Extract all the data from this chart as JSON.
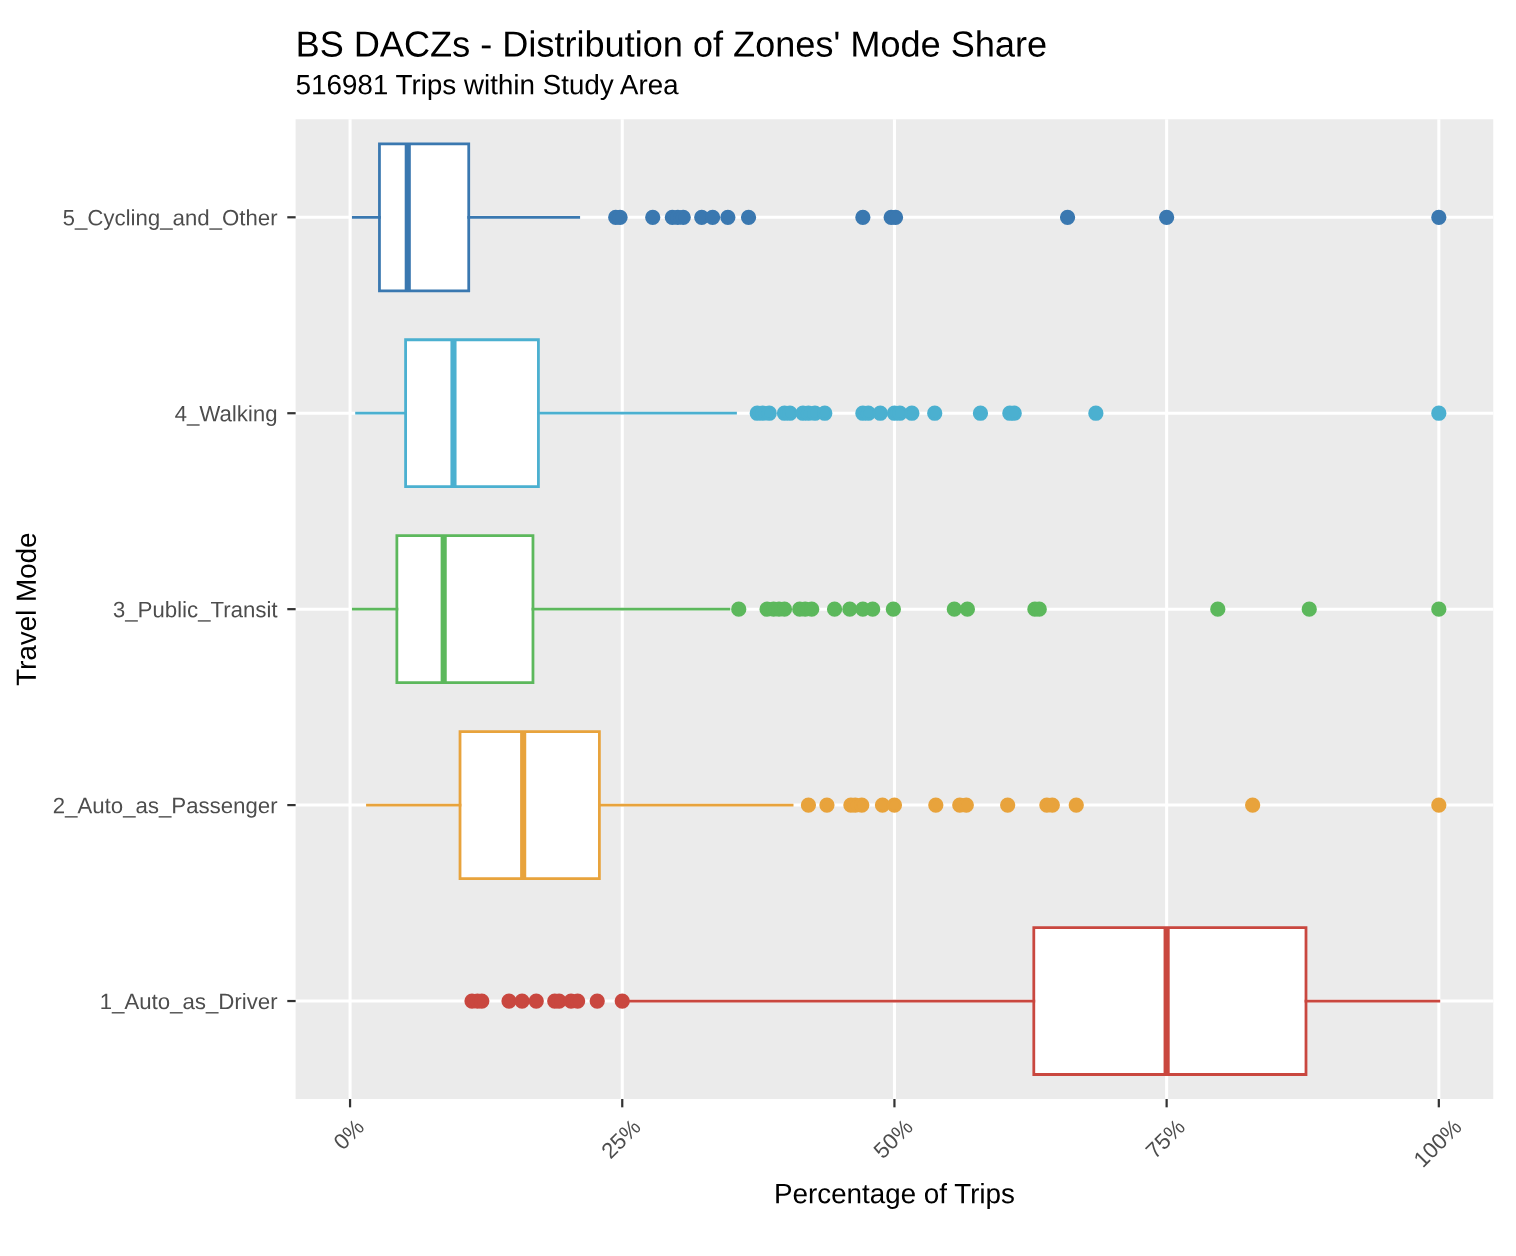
{
  "chart_data": {
    "type": "box",
    "title": "BS DACZs - Distribution of Zones' Mode Share",
    "subtitle": "516981 Trips within Study Area",
    "xlabel": "Percentage of Trips",
    "ylabel": "Travel Mode",
    "orientation": "horizontal",
    "categories": [
      "5_Cycling_and_Other",
      "4_Walking",
      "3_Public_Transit",
      "2_Auto_as_Passenger",
      "1_Auto_as_Driver"
    ],
    "colors": [
      "#3a78b0",
      "#4bb0d0",
      "#5cb85c",
      "#e8a33c",
      "#c9473f"
    ],
    "boxes": [
      {
        "low": 0.3,
        "q1": 2.7,
        "median": 5.3,
        "q3": 10.9,
        "high": 21.0,
        "outliers": [
          24.4,
          24.8,
          27.8,
          29.6,
          30.1,
          30.6,
          32.3,
          33.3,
          34.7,
          36.6,
          47.1,
          49.7,
          50.1,
          65.9,
          75.0,
          100
        ]
      },
      {
        "low": 0.6,
        "q1": 5.1,
        "median": 9.5,
        "q3": 17.3,
        "high": 35.4,
        "outliers": [
          37.4,
          37.9,
          38.5,
          39.9,
          40.4,
          41.6,
          42.1,
          42.7,
          43.6,
          47.1,
          47.6,
          48.7,
          50.0,
          50.5,
          51.6,
          53.7,
          57.9,
          60.6,
          61.0,
          68.5,
          100
        ]
      },
      {
        "low": 0.3,
        "q1": 4.3,
        "median": 8.6,
        "q3": 16.8,
        "high": 34.8,
        "outliers": [
          35.7,
          38.3,
          38.9,
          39.4,
          39.9,
          41.3,
          41.8,
          42.4,
          44.5,
          45.9,
          47.1,
          48.0,
          49.9,
          55.5,
          56.7,
          62.9,
          63.3,
          79.7,
          88.1,
          100
        ]
      },
      {
        "low": 1.6,
        "q1": 10.1,
        "median": 15.9,
        "q3": 22.9,
        "high": 40.6,
        "outliers": [
          42.1,
          43.8,
          46.0,
          46.4,
          47.0,
          48.9,
          50.0,
          53.8,
          56.0,
          56.6,
          60.4,
          64.0,
          64.5,
          66.7,
          82.9,
          100
        ]
      },
      {
        "low": 25.7,
        "q1": 62.8,
        "median": 75.0,
        "q3": 87.8,
        "high": 100,
        "outliers": [
          11.2,
          11.7,
          12.1,
          14.6,
          15.8,
          17.1,
          18.8,
          19.2,
          20.3,
          20.9,
          22.7,
          25.0
        ]
      }
    ],
    "xlim": [
      -5,
      105
    ],
    "xticks": [
      {
        "value": 0,
        "label": "0%"
      },
      {
        "value": 25,
        "label": "25%"
      },
      {
        "value": 50,
        "label": "50%"
      },
      {
        "value": 75,
        "label": "75%"
      },
      {
        "value": 100,
        "label": "100%"
      }
    ],
    "grid": true
  }
}
